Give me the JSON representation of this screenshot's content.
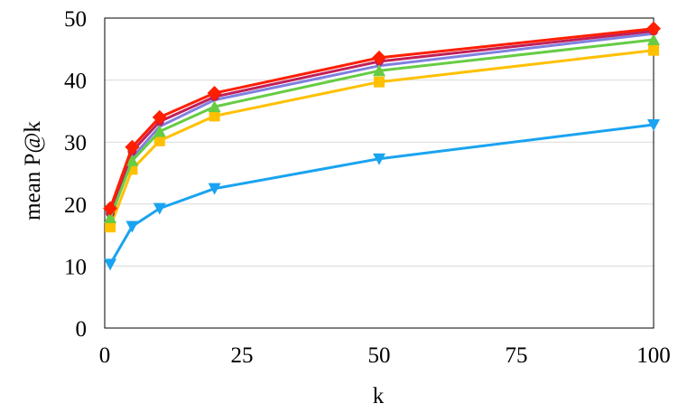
{
  "chart_data": {
    "type": "line",
    "title": "",
    "xlabel": "k",
    "ylabel": "mean P@k",
    "xlim": [
      0,
      100
    ],
    "ylim": [
      0,
      50
    ],
    "xticks": [
      0,
      25,
      50,
      75,
      100
    ],
    "yticks": [
      0,
      10,
      20,
      30,
      40,
      50
    ],
    "x_tick_labels": [
      "0",
      "25",
      "50",
      "75",
      "100"
    ],
    "y_tick_labels": [
      "0",
      "10",
      "20",
      "30",
      "40",
      "50"
    ],
    "grid": "horizontal",
    "legend": "none",
    "x": [
      1,
      5,
      10,
      20,
      50,
      100
    ],
    "series": [
      {
        "color": "#1AA3F0",
        "marker": "triangle-down",
        "values": [
          10.3,
          16.4,
          19.3,
          22.5,
          27.3,
          32.8
        ]
      },
      {
        "color": "#FFC000",
        "marker": "square",
        "values": [
          16.3,
          25.6,
          30.2,
          34.2,
          39.7,
          44.8
        ]
      },
      {
        "color": "#8080E0",
        "marker": "none",
        "values": [
          17.5,
          27.5,
          32.5,
          36.8,
          42.3,
          47.5
        ]
      },
      {
        "color": "#C0205A",
        "marker": "circle",
        "values": [
          18.5,
          28.5,
          33.3,
          37.3,
          43.0,
          47.9
        ]
      },
      {
        "color": "#66CC44",
        "marker": "triangle-up",
        "values": [
          17.8,
          27.0,
          31.7,
          35.7,
          41.5,
          46.5
        ]
      },
      {
        "color": "#FF1E00",
        "marker": "diamond",
        "values": [
          19.3,
          29.2,
          34.0,
          37.9,
          43.6,
          48.3
        ]
      }
    ]
  }
}
